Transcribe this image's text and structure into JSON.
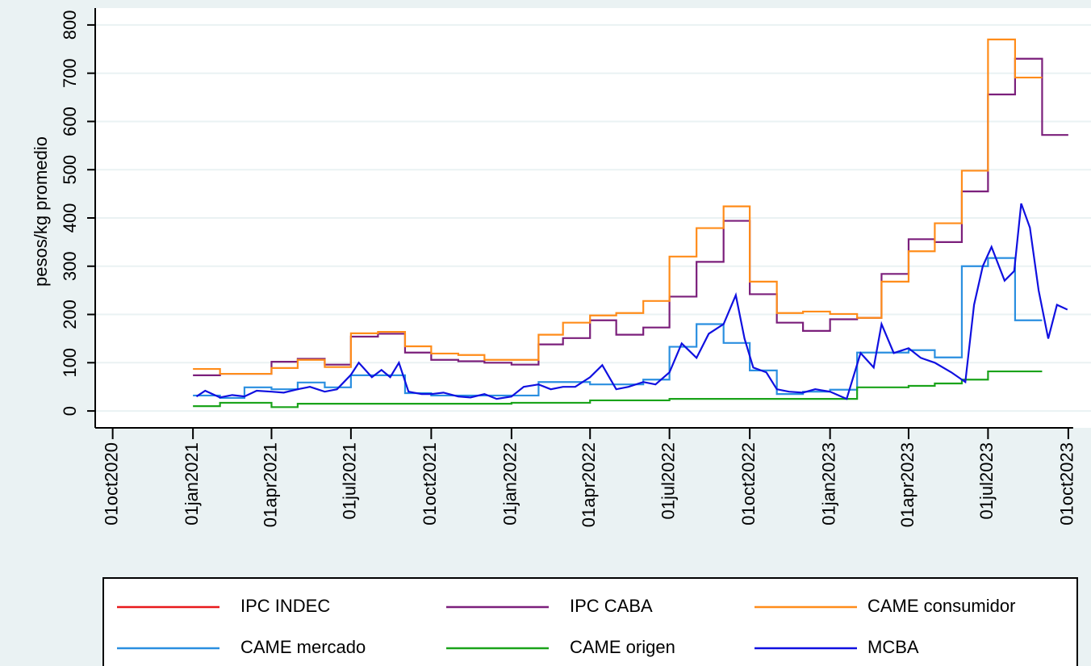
{
  "chart_data": {
    "type": "line",
    "ylabel": "pesos/kg promedio",
    "ylim": [
      -35,
      835
    ],
    "yticks": [
      0,
      100,
      200,
      300,
      400,
      500,
      600,
      700,
      800
    ],
    "xlim": [
      "2020-09-11",
      "2023-10-27"
    ],
    "xticks": [
      {
        "value": "2020-10-01",
        "label": "01oct2020"
      },
      {
        "value": "2021-01-01",
        "label": "01jan2021"
      },
      {
        "value": "2021-04-01",
        "label": "01apr2021"
      },
      {
        "value": "2021-07-01",
        "label": "01jul2021"
      },
      {
        "value": "2021-10-01",
        "label": "01oct2021"
      },
      {
        "value": "2022-01-01",
        "label": "01jan2022"
      },
      {
        "value": "2022-04-01",
        "label": "01apr2022"
      },
      {
        "value": "2022-07-01",
        "label": "01jul2022"
      },
      {
        "value": "2022-10-01",
        "label": "01oct2022"
      },
      {
        "value": "2023-01-01",
        "label": "01jan2023"
      },
      {
        "value": "2023-04-01",
        "label": "01apr2023"
      },
      {
        "value": "2023-07-01",
        "label": "01jul2023"
      },
      {
        "value": "2023-10-01",
        "label": "01oct2023"
      }
    ],
    "grid": true,
    "series": [
      {
        "name": "IPC INDEC",
        "color": "#e8191c",
        "step": true,
        "x": [],
        "values": []
      },
      {
        "name": "IPC CABA",
        "color": "#7b1f7b",
        "step": true,
        "x": [
          "2021-01-01",
          "2021-02-01",
          "2021-03-01",
          "2021-04-01",
          "2021-05-01",
          "2021-06-01",
          "2021-07-01",
          "2021-08-01",
          "2021-09-01",
          "2021-10-01",
          "2021-11-01",
          "2021-12-01",
          "2022-01-01",
          "2022-02-01",
          "2022-03-01",
          "2022-04-01",
          "2022-05-01",
          "2022-06-01",
          "2022-07-01",
          "2022-08-01",
          "2022-09-01",
          "2022-10-01",
          "2022-11-01",
          "2022-12-01",
          "2023-01-01",
          "2023-02-01",
          "2023-03-01",
          "2023-04-01",
          "2023-05-01",
          "2023-06-01",
          "2023-07-01",
          "2023-08-01",
          "2023-09-01",
          "2023-10-01"
        ],
        "values": [
          74,
          77,
          77,
          102,
          108,
          96,
          154,
          160,
          121,
          106,
          103,
          100,
          96,
          138,
          151,
          188,
          158,
          173,
          237,
          309,
          394,
          242,
          183,
          166,
          190,
          193,
          284,
          356,
          350,
          455,
          656,
          730,
          572,
          572
        ]
      },
      {
        "name": "CAME consumidor",
        "color": "#ff8c1a",
        "step": true,
        "x": [
          "2021-01-01",
          "2021-02-01",
          "2021-03-01",
          "2021-04-01",
          "2021-05-01",
          "2021-06-01",
          "2021-07-01",
          "2021-08-01",
          "2021-09-01",
          "2021-10-01",
          "2021-11-01",
          "2021-12-01",
          "2022-01-01",
          "2022-02-01",
          "2022-03-01",
          "2022-04-01",
          "2022-05-01",
          "2022-06-01",
          "2022-07-01",
          "2022-08-01",
          "2022-09-01",
          "2022-10-01",
          "2022-11-01",
          "2022-12-01",
          "2023-01-01",
          "2023-02-01",
          "2023-03-01",
          "2023-04-01",
          "2023-05-01",
          "2023-06-01",
          "2023-07-01",
          "2023-08-01",
          "2023-09-01"
        ],
        "values": [
          87,
          77,
          77,
          89,
          106,
          91,
          161,
          164,
          134,
          119,
          116,
          106,
          106,
          158,
          183,
          198,
          203,
          228,
          320,
          379,
          424,
          268,
          203,
          206,
          201,
          193,
          268,
          331,
          389,
          498,
          770,
          691,
          691
        ]
      },
      {
        "name": "CAME mercado",
        "color": "#2a8fe0",
        "step": true,
        "x": [
          "2021-01-01",
          "2021-02-01",
          "2021-03-01",
          "2021-04-01",
          "2021-05-01",
          "2021-06-01",
          "2021-07-01",
          "2021-08-01",
          "2021-09-01",
          "2021-10-01",
          "2021-11-01",
          "2021-12-01",
          "2022-01-01",
          "2022-02-01",
          "2022-03-01",
          "2022-04-01",
          "2022-05-01",
          "2022-06-01",
          "2022-07-01",
          "2022-08-01",
          "2022-09-01",
          "2022-10-01",
          "2022-11-01",
          "2022-12-01",
          "2023-01-01",
          "2023-02-01",
          "2023-03-01",
          "2023-04-01",
          "2023-05-01",
          "2023-06-01",
          "2023-07-01",
          "2023-08-01",
          "2023-09-01"
        ],
        "values": [
          32,
          27,
          49,
          45,
          59,
          49,
          74,
          74,
          37,
          32,
          32,
          32,
          32,
          60,
          60,
          55,
          55,
          65,
          133,
          180,
          141,
          84,
          35,
          40,
          44,
          121,
          121,
          126,
          111,
          300,
          317,
          188,
          188
        ]
      },
      {
        "name": "CAME origen",
        "color": "#1aa31a",
        "step": true,
        "x": [
          "2021-01-01",
          "2021-02-01",
          "2021-03-01",
          "2021-04-01",
          "2021-05-01",
          "2021-06-01",
          "2021-07-01",
          "2021-08-01",
          "2021-09-01",
          "2021-10-01",
          "2021-11-01",
          "2021-12-01",
          "2022-01-01",
          "2022-02-01",
          "2022-03-01",
          "2022-04-01",
          "2022-05-01",
          "2022-06-01",
          "2022-07-01",
          "2022-08-01",
          "2022-09-01",
          "2022-10-01",
          "2022-11-01",
          "2022-12-01",
          "2023-01-01",
          "2023-02-01",
          "2023-03-01",
          "2023-04-01",
          "2023-05-01",
          "2023-06-01",
          "2023-07-01",
          "2023-08-01",
          "2023-09-01"
        ],
        "values": [
          10,
          17,
          17,
          8,
          15,
          15,
          15,
          15,
          15,
          15,
          15,
          15,
          17,
          17,
          17,
          22,
          22,
          22,
          25,
          25,
          25,
          25,
          25,
          25,
          25,
          49,
          49,
          52,
          57,
          65,
          82,
          82,
          82
        ]
      },
      {
        "name": "MCBA",
        "color": "#1010e0",
        "step": false,
        "x": [
          "2021-01-05",
          "2021-01-15",
          "2021-02-01",
          "2021-02-15",
          "2021-03-01",
          "2021-03-15",
          "2021-04-01",
          "2021-04-15",
          "2021-05-01",
          "2021-05-15",
          "2021-06-01",
          "2021-06-15",
          "2021-07-01",
          "2021-07-10",
          "2021-07-25",
          "2021-08-05",
          "2021-08-15",
          "2021-08-25",
          "2021-09-05",
          "2021-09-20",
          "2021-10-01",
          "2021-10-15",
          "2021-11-01",
          "2021-11-15",
          "2021-12-01",
          "2021-12-15",
          "2022-01-01",
          "2022-01-15",
          "2022-02-01",
          "2022-02-15",
          "2022-03-01",
          "2022-03-15",
          "2022-04-01",
          "2022-04-15",
          "2022-05-01",
          "2022-05-15",
          "2022-06-01",
          "2022-06-15",
          "2022-07-01",
          "2022-07-15",
          "2022-08-01",
          "2022-08-15",
          "2022-09-01",
          "2022-09-15",
          "2022-09-25",
          "2022-10-05",
          "2022-10-20",
          "2022-11-01",
          "2022-11-15",
          "2022-12-01",
          "2022-12-15",
          "2023-01-01",
          "2023-01-20",
          "2023-02-05",
          "2023-02-20",
          "2023-03-01",
          "2023-03-15",
          "2023-04-01",
          "2023-04-15",
          "2023-05-01",
          "2023-05-20",
          "2023-06-05",
          "2023-06-15",
          "2023-06-25",
          "2023-07-05",
          "2023-07-20",
          "2023-07-31",
          "2023-08-08",
          "2023-08-18",
          "2023-08-28",
          "2023-09-08",
          "2023-09-18",
          "2023-09-30"
        ],
        "values": [
          30,
          42,
          28,
          33,
          30,
          42,
          40,
          38,
          45,
          50,
          40,
          45,
          75,
          100,
          70,
          85,
          70,
          100,
          40,
          35,
          35,
          38,
          30,
          28,
          35,
          25,
          30,
          50,
          55,
          45,
          50,
          50,
          70,
          95,
          45,
          50,
          60,
          55,
          80,
          140,
          110,
          160,
          180,
          240,
          150,
          90,
          80,
          45,
          40,
          38,
          45,
          40,
          25,
          120,
          90,
          180,
          120,
          130,
          110,
          100,
          80,
          60,
          220,
          300,
          340,
          270,
          290,
          430,
          380,
          250,
          150,
          220,
          210
        ]
      }
    ]
  }
}
